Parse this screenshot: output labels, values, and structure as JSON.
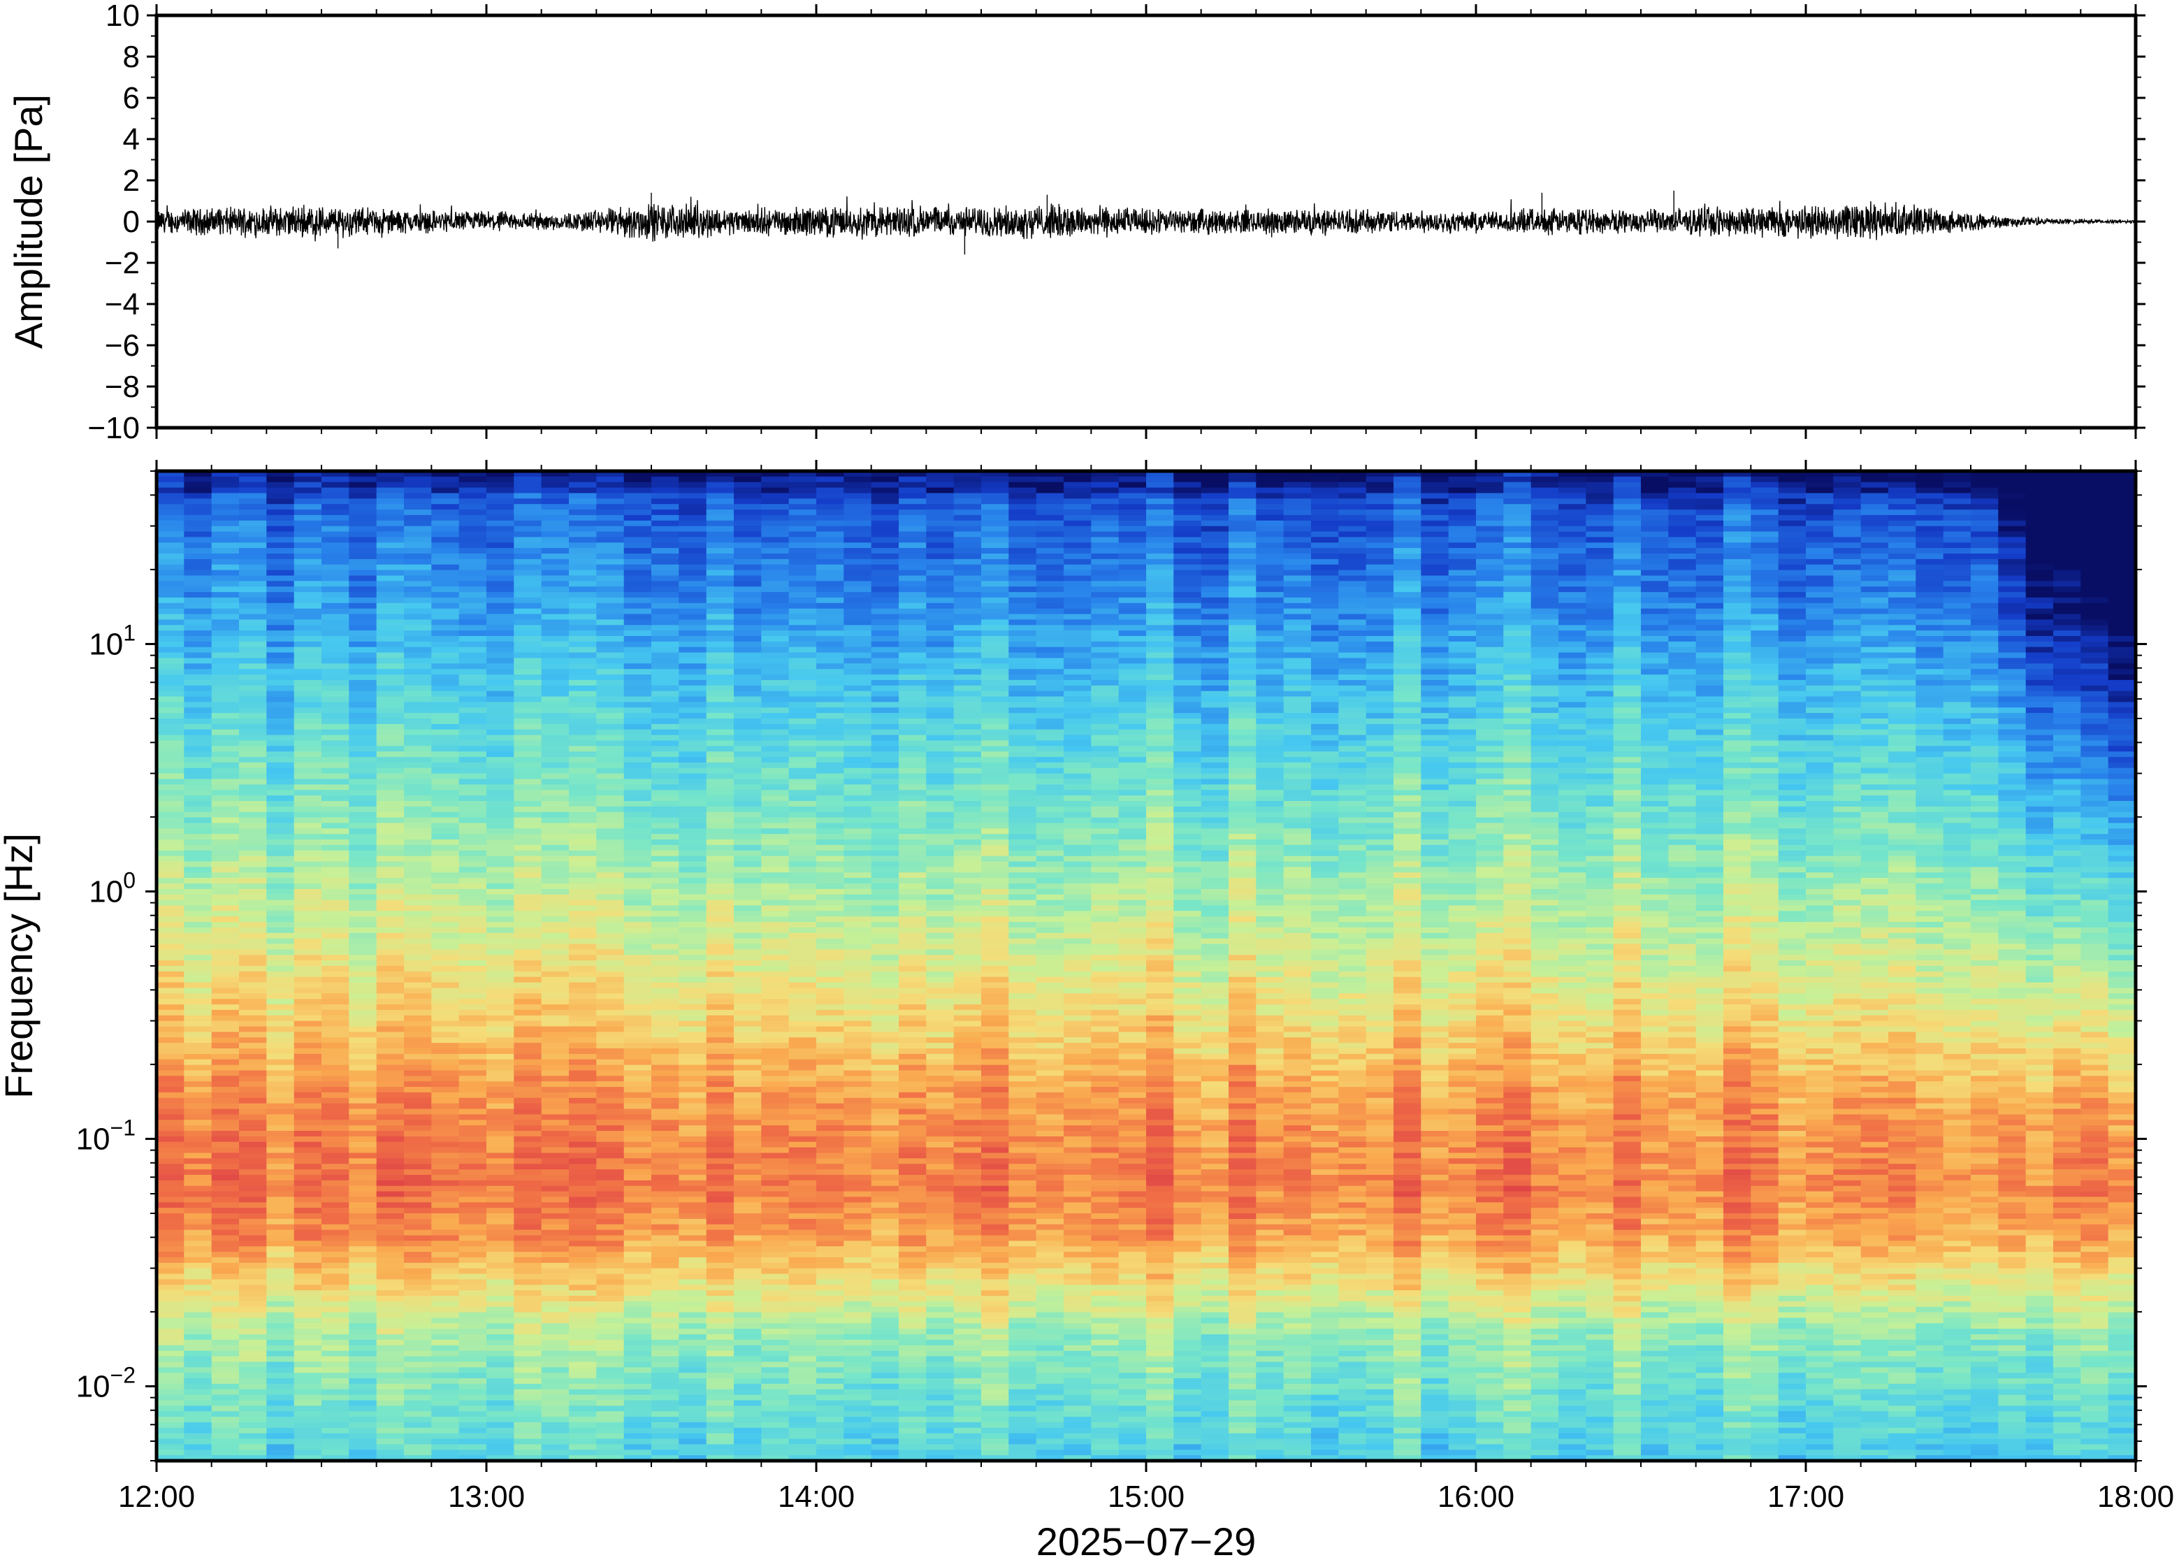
{
  "chart_data": [
    {
      "type": "line",
      "ylabel": "Amplitude [Pa]",
      "ylim": [
        -10,
        10
      ],
      "yticks": [
        "10",
        "8",
        "6",
        "4",
        "2",
        "0",
        "−2",
        "−4",
        "−6",
        "−8",
        "−10"
      ],
      "ytick_values": [
        10,
        8,
        6,
        4,
        2,
        0,
        -2,
        -4,
        -6,
        -8,
        -10
      ],
      "x_range": [
        "12:00",
        "18:00"
      ],
      "series": [
        {
          "envelope_hours": [
            0,
            0.25,
            0.5,
            0.75,
            1.0,
            1.25,
            1.5,
            1.75,
            2.0,
            2.25,
            2.5,
            2.75,
            3.0,
            3.25,
            3.5,
            3.75,
            4.0,
            4.25,
            4.5,
            4.75,
            5.0,
            5.25,
            5.5,
            5.75,
            6.0
          ],
          "envelope_max_pa": [
            0.8,
            1.0,
            1.1,
            0.8,
            0.7,
            0.6,
            1.3,
            0.9,
            1.0,
            1.1,
            1.0,
            1.2,
            0.9,
            0.8,
            0.9,
            0.8,
            0.7,
            0.9,
            0.8,
            1.0,
            1.1,
            1.3,
            0.6,
            0.2,
            0.1
          ],
          "peaks": [
            {
              "x_hour": 0.55,
              "y": -1.3
            },
            {
              "x_hour": 1.5,
              "y": 1.4
            },
            {
              "x_hour": 2.45,
              "y": -1.6
            },
            {
              "x_hour": 2.7,
              "y": 1.3
            },
            {
              "x_hour": 4.2,
              "y": 1.4
            },
            {
              "x_hour": 4.6,
              "y": 1.5
            }
          ]
        }
      ]
    },
    {
      "type": "heatmap",
      "ylabel": "Frequency [Hz]",
      "xlabel": "2025−07−29",
      "yscale": "log",
      "ylim_hz": [
        0.005,
        50
      ],
      "yticks": [
        {
          "base": "10",
          "exp": "1",
          "value": 10
        },
        {
          "base": "10",
          "exp": "0",
          "value": 1
        },
        {
          "base": "10",
          "exp": "−1",
          "value": 0.1
        },
        {
          "base": "10",
          "exp": "−2",
          "value": 0.01
        }
      ],
      "xticks": [
        "12:00",
        "13:00",
        "14:00",
        "15:00",
        "16:00",
        "17:00",
        "18:00"
      ],
      "colormap": "rainbow (dark blue = low power, red = high power)",
      "colors": {
        "low": "#06106a",
        "high": "#e8434a"
      },
      "spectral_profile": {
        "log10_freq": [
          1.7,
          1.5,
          1.2,
          1.0,
          0.7,
          0.3,
          0.0,
          -0.3,
          -0.6,
          -0.8,
          -1.0,
          -1.2,
          -1.4,
          -1.6,
          -1.8,
          -2.0,
          -2.3
        ],
        "relative_power": [
          0.08,
          0.18,
          0.24,
          0.3,
          0.38,
          0.47,
          0.55,
          0.63,
          0.72,
          0.8,
          0.84,
          0.86,
          0.8,
          0.66,
          0.52,
          0.46,
          0.38
        ]
      },
      "quiet_period": {
        "start_hour": 5.6,
        "end_hour": 6.0
      }
    }
  ]
}
